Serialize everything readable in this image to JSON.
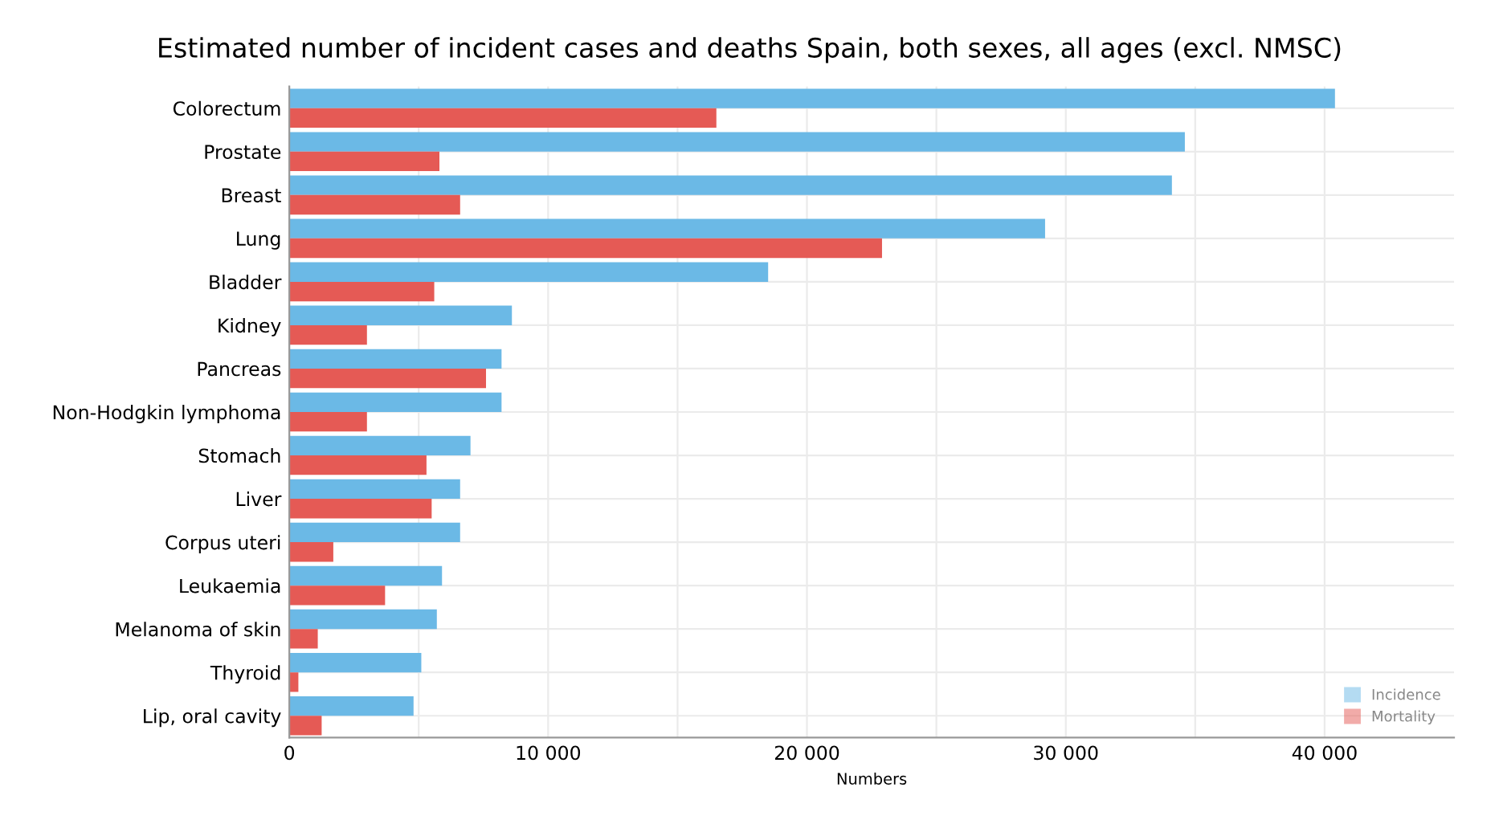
{
  "chart_data": {
    "type": "bar",
    "orientation": "horizontal",
    "title": "Estimated number of incident cases and deaths Spain, both sexes, all ages (excl. NMSC)",
    "xlabel": "Numbers",
    "categories": [
      "Colorectum",
      "Prostate",
      "Breast",
      "Lung",
      "Bladder",
      "Kidney",
      "Pancreas",
      "Non-Hodgkin lymphoma",
      "Stomach",
      "Liver",
      "Corpus uteri",
      "Leukaemia",
      "Melanoma of skin",
      "Thyroid",
      "Lip, oral cavity"
    ],
    "series": [
      {
        "name": "Incidence",
        "color": "#6bb9e6",
        "values": [
          40400,
          34600,
          34100,
          29200,
          18500,
          8600,
          8200,
          8200,
          7000,
          6600,
          6600,
          5900,
          5700,
          5100,
          4800
        ]
      },
      {
        "name": "Mortality",
        "color": "#e55a55",
        "values": [
          16500,
          5800,
          6600,
          22900,
          5600,
          3000,
          7600,
          3000,
          5300,
          5500,
          1700,
          3700,
          1100,
          350,
          1250
        ]
      }
    ],
    "xlim": [
      0,
      45000
    ],
    "xticks": [
      0,
      {
        "value": 5000,
        "label": null
      },
      {
        "value": 10000,
        "label": "10 000"
      },
      {
        "value": 15000,
        "label": null
      },
      {
        "value": 20000,
        "label": "20 000"
      },
      {
        "value": 25000,
        "label": null
      },
      {
        "value": 30000,
        "label": "30 000"
      },
      {
        "value": 35000,
        "label": null
      },
      {
        "value": 40000,
        "label": "40 000"
      }
    ],
    "grid": true,
    "legend": "bottom right"
  }
}
